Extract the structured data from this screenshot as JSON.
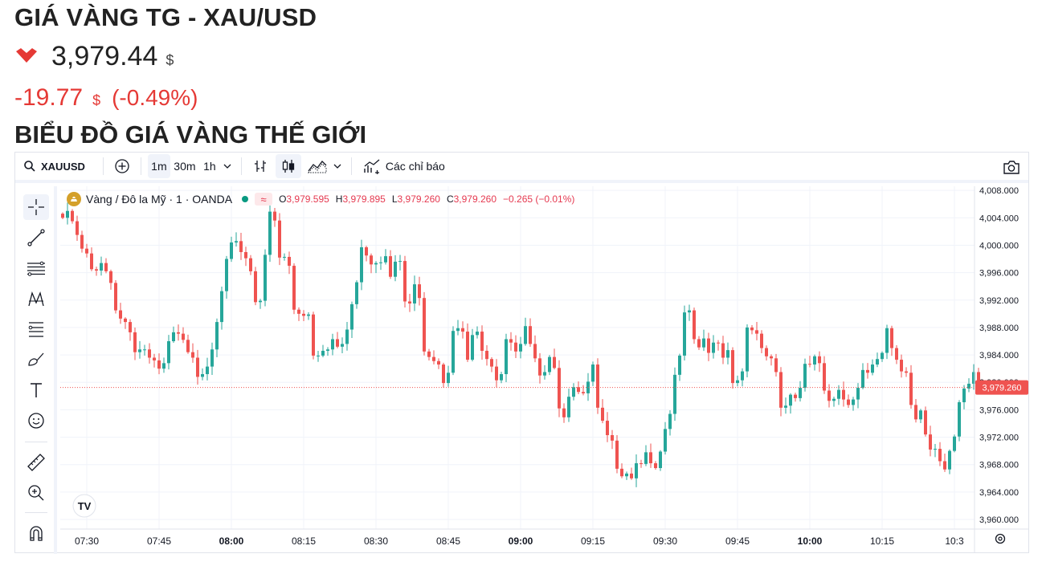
{
  "header": {
    "title": "GIÁ VÀNG TG - XAU/USD",
    "price": "3,979.44",
    "price_currency": "$",
    "change": "-19.77",
    "change_currency": "$",
    "change_percent": "(-0.49%)",
    "section_title": "BIỂU ĐỒ GIÁ VÀNG THẾ GIỚI"
  },
  "colors": {
    "up": "#26a69a",
    "down": "#ef5350",
    "accent_red": "#e53935",
    "text": "#131722"
  },
  "toolbar": {
    "symbol": "XAUUSD",
    "intervals": [
      "1m",
      "30m",
      "1h"
    ],
    "active_interval": "1m",
    "indicators_label": "Các chỉ báo",
    "icons": [
      "search-icon",
      "add-compare-icon",
      "chevron-down-icon",
      "bar-style-icon",
      "candles-icon",
      "area-style-icon",
      "indicators-icon",
      "camera-icon"
    ]
  },
  "sidebar": {
    "tools": [
      "crosshair-icon",
      "trend-line-icon",
      "horizontal-lines-icon",
      "pattern-icon",
      "fib-icon",
      "brush-icon",
      "text-icon",
      "emoji-icon",
      "ruler-icon",
      "zoom-in-icon",
      "magnet-icon"
    ]
  },
  "legend": {
    "name": "Vàng / Đô la Mỹ · 1 · OANDA",
    "o_label": "O",
    "o": "3,979.595",
    "h_label": "H",
    "h": "3,979.895",
    "l_label": "L",
    "l": "3,979.260",
    "c_label": "C",
    "c": "3,979.260",
    "delta": "−0.265 (−0.01%)"
  },
  "chart_data": {
    "type": "candlestick",
    "x_ticks": [
      "07:30",
      "07:45",
      "08:00",
      "08:15",
      "08:30",
      "08:45",
      "09:00",
      "09:15",
      "09:30",
      "09:45",
      "10:00",
      "10:15",
      "10:3"
    ],
    "x_ticks_bold": [
      "08:00",
      "09:00",
      "10:00"
    ],
    "y_ticks": [
      "4,008.000",
      "4,004.000",
      "4,000.000",
      "3,996.000",
      "3,992.000",
      "3,988.000",
      "3,984.000",
      "3,980.000",
      "3,976.000",
      "3,972.000",
      "3,968.000",
      "3,964.000",
      "3,960.000"
    ],
    "y_tick_values": [
      4008,
      4004,
      4000,
      3996,
      3992,
      3988,
      3984,
      3980,
      3976,
      3972,
      3968,
      3964,
      3960
    ],
    "ylim": [
      3958.6,
      4008.6
    ],
    "last_price": 3979.26,
    "last_price_label": "3,979.260",
    "first_time": "07:25",
    "interval_minutes": 1,
    "x_tick_minutes": 15,
    "closes": [
      4004,
      4005,
      4003.5,
      4001.5,
      3999.5,
      3998.8,
      3996.5,
      3996.3,
      3997.4,
      3996.2,
      3994.5,
      3990.5,
      3989.3,
      3988.8,
      3987.3,
      3984.4,
      3984.8,
      3984.8,
      3983.6,
      3983.2,
      3982,
      3982.8,
      3986,
      3987.3,
      3987.1,
      3986.2,
      3984.4,
      3983.6,
      3980.8,
      3981.2,
      3982.3,
      3984.8,
      3988.8,
      3993.3,
      3998,
      4000.4,
      4000.6,
      3999,
      3998.1,
      3996.2,
      3991.7,
      3991.9,
      3998.6,
      4004.9,
      4003.6,
      3998.2,
      3998.3,
      3997,
      3990.6,
      3990,
      3989.7,
      3989.9,
      3983.9,
      3983.9,
      3984.6,
      3984.8,
      3986.3,
      3985.2,
      3985.6,
      3987.7,
      3991.4,
      3994.6,
      3999.7,
      3998.5,
      3997.2,
      3997.4,
      3997.5,
      3998.4,
      3995.4,
      3997.6,
      3997.7,
      3991.8,
      3991.5,
      3994.3,
      3992.3,
      3984.5,
      3983.7,
      3983.1,
      3982.6,
      3979.9,
      3981.4,
      3987.5,
      3987.9,
      3987.4,
      3983.3,
      3986.9,
      3987.4,
      3984.6,
      3983.4,
      3982.3,
      3980.3,
      3981.2,
      3986.3,
      3985.8,
      3984.5,
      3985.6,
      3988.2,
      3985.6,
      3983.5,
      3981,
      3981.5,
      3983.7,
      3982.1,
      3976.2,
      3974.9,
      3977.9,
      3979.3,
      3978.6,
      3978.4,
      3980.1,
      3982.6,
      3976.3,
      3974.4,
      3972.3,
      3971.5,
      3967.4,
      3966.3,
      3966.7,
      3966,
      3968.2,
      3968.1,
      3969.8,
      3968.2,
      3967.5,
      3969.9,
      3973.2,
      3975.4,
      3981.1,
      3983.9,
      3990.2,
      3990.5,
      3986.3,
      3985.1,
      3986.4,
      3984.3,
      3985.8,
      3985.7,
      3983.6,
      3984.7,
      3979.9,
      3980.3,
      3981.6,
      3988,
      3987.6,
      3987.1,
      3985,
      3983.8,
      3983.5,
      3981.5,
      3976.3,
      3976.6,
      3978.2,
      3977.7,
      3979.2,
      3982.7,
      3982.6,
      3983.8,
      3982.8,
      3978.8,
      3977.3,
      3977.6,
      3978.9,
      3977.5,
      3976.7,
      3977.5,
      3979.2,
      3981.8,
      3981.4,
      3982.6,
      3983.4,
      3984.3,
      3987.9,
      3985,
      3983.3,
      3981.6,
      3981.4,
      3976.7,
      3974.6,
      3975.9,
      3972.4,
      3970.2,
      3970.3,
      3968.5,
      3967.3,
      3970,
      3972.1,
      3977.1,
      3979.1,
      3979.8,
      3981.5,
      3979.3
    ]
  }
}
